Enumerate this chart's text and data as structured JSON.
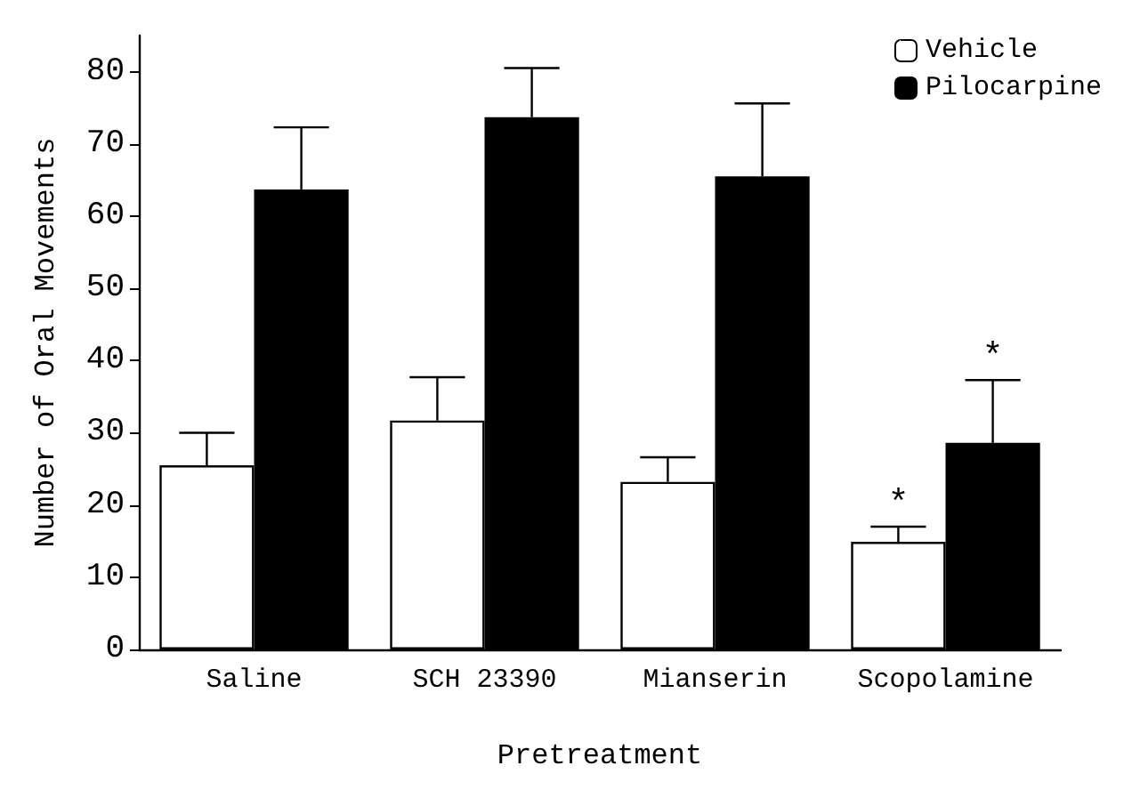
{
  "chart_data": {
    "type": "bar",
    "xlabel": "Pretreatment",
    "ylabel": "Number of Oral Movements",
    "categories": [
      "Saline",
      "SCH 23390",
      "Mianserin",
      "Scopolamine"
    ],
    "series": [
      {
        "name": "Vehicle",
        "color": "#ffffff",
        "values": [
          25.5,
          31.7,
          23.2,
          14.9
        ],
        "errors": [
          [
            25.5,
            30.0
          ],
          [
            31.7,
            37.7
          ],
          [
            23.2,
            26.6
          ],
          [
            14.9,
            17.0
          ]
        ]
      },
      {
        "name": "Pilocarpine",
        "color": "#000000",
        "values": [
          63.7,
          73.7,
          65.5,
          28.6
        ],
        "errors": [
          [
            63.7,
            72.3
          ],
          [
            73.7,
            80.5
          ],
          [
            65.5,
            75.6
          ],
          [
            28.6,
            37.3
          ]
        ]
      }
    ],
    "ylim": [
      0,
      85
    ],
    "yticks": [
      0,
      10,
      20,
      30,
      40,
      50,
      60,
      70,
      80
    ],
    "annotations": [
      {
        "text": "*",
        "x": "Scopolamine",
        "y": 14.9
      },
      {
        "text": "*",
        "x": "Scopolamine",
        "y": 28.6
      }
    ],
    "legend": "top right",
    "grid": false
  }
}
